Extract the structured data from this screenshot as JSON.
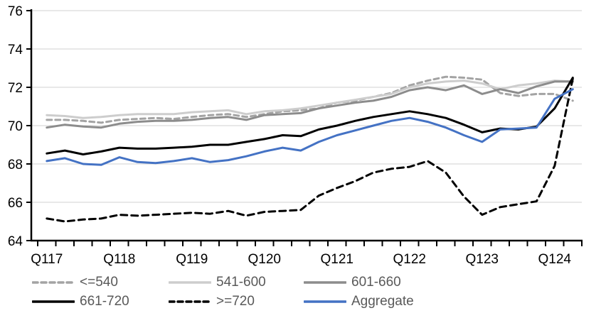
{
  "chart_data": {
    "type": "line",
    "title": "",
    "x_start": "2017Q1",
    "x_freq": "quarterly",
    "n_points": 30,
    "x_tick_labels": [
      "Q117",
      "Q118",
      "Q119",
      "Q120",
      "Q121",
      "Q122",
      "Q123",
      "Q124"
    ],
    "x_tick_indices": [
      0,
      4,
      8,
      12,
      16,
      20,
      24,
      28
    ],
    "ylim": [
      64,
      76
    ],
    "y_ticks": [
      64,
      66,
      68,
      70,
      72,
      74,
      76
    ],
    "grid": "horizontal",
    "gridline_color": "#d9d9d9",
    "axis_color": "#000000",
    "legend_position": "bottom",
    "legend_text_color": "#595959",
    "series": [
      {
        "name": "<=540",
        "slug": "le-540",
        "color": "#a3a3a3",
        "dash": "dashed",
        "values": [
          70.3,
          70.3,
          70.25,
          70.15,
          70.3,
          70.35,
          70.4,
          70.35,
          70.45,
          70.55,
          70.6,
          70.45,
          70.6,
          70.75,
          70.8,
          70.9,
          71.2,
          71.3,
          71.5,
          71.7,
          72.1,
          72.35,
          72.55,
          72.5,
          72.4,
          71.7,
          71.55,
          71.65,
          71.65,
          71.3
        ]
      },
      {
        "name": "541-600",
        "slug": "541-600",
        "color": "#cdcdcd",
        "dash": "solid",
        "values": [
          70.55,
          70.5,
          70.4,
          70.45,
          70.55,
          70.6,
          70.6,
          70.6,
          70.7,
          70.75,
          70.8,
          70.6,
          70.75,
          70.8,
          70.9,
          71.05,
          71.2,
          71.35,
          71.5,
          71.65,
          72.0,
          72.2,
          72.3,
          72.35,
          72.2,
          71.9,
          72.1,
          72.2,
          72.35,
          72.3
        ]
      },
      {
        "name": "601-660",
        "slug": "601-660",
        "color": "#8c8c8c",
        "dash": "solid",
        "values": [
          69.9,
          70.05,
          69.95,
          69.9,
          70.1,
          70.2,
          70.25,
          70.25,
          70.3,
          70.4,
          70.45,
          70.3,
          70.55,
          70.6,
          70.65,
          70.9,
          71.05,
          71.2,
          71.3,
          71.5,
          71.85,
          72.0,
          71.85,
          72.1,
          71.65,
          71.9,
          71.7,
          72.05,
          72.3,
          72.3
        ]
      },
      {
        "name": "661-720",
        "slug": "661-720",
        "color": "#000000",
        "dash": "solid",
        "values": [
          68.55,
          68.7,
          68.5,
          68.65,
          68.85,
          68.8,
          68.8,
          68.85,
          68.9,
          69.0,
          69.0,
          69.15,
          69.3,
          69.5,
          69.45,
          69.8,
          70.0,
          70.25,
          70.45,
          70.6,
          70.75,
          70.6,
          70.4,
          70.05,
          69.65,
          69.85,
          69.8,
          69.95,
          70.9,
          72.5
        ]
      },
      {
        "name": ">=720",
        "slug": "ge-720",
        "color": "#000000",
        "dash": "dashed",
        "values": [
          65.15,
          65.0,
          65.1,
          65.15,
          65.35,
          65.3,
          65.35,
          65.4,
          65.45,
          65.4,
          65.55,
          65.3,
          65.5,
          65.55,
          65.6,
          66.35,
          66.75,
          67.1,
          67.55,
          67.75,
          67.85,
          68.15,
          67.55,
          66.3,
          65.35,
          65.75,
          65.9,
          66.05,
          67.9,
          72.45
        ]
      },
      {
        "name": "Aggregate",
        "slug": "aggregate",
        "color": "#4472c4",
        "dash": "solid",
        "values": [
          68.15,
          68.3,
          68.0,
          67.95,
          68.35,
          68.1,
          68.05,
          68.15,
          68.3,
          68.1,
          68.2,
          68.4,
          68.65,
          68.85,
          68.7,
          69.15,
          69.5,
          69.75,
          70.0,
          70.25,
          70.4,
          70.2,
          69.9,
          69.5,
          69.15,
          69.8,
          69.85,
          69.9,
          71.4,
          71.9
        ]
      }
    ]
  }
}
